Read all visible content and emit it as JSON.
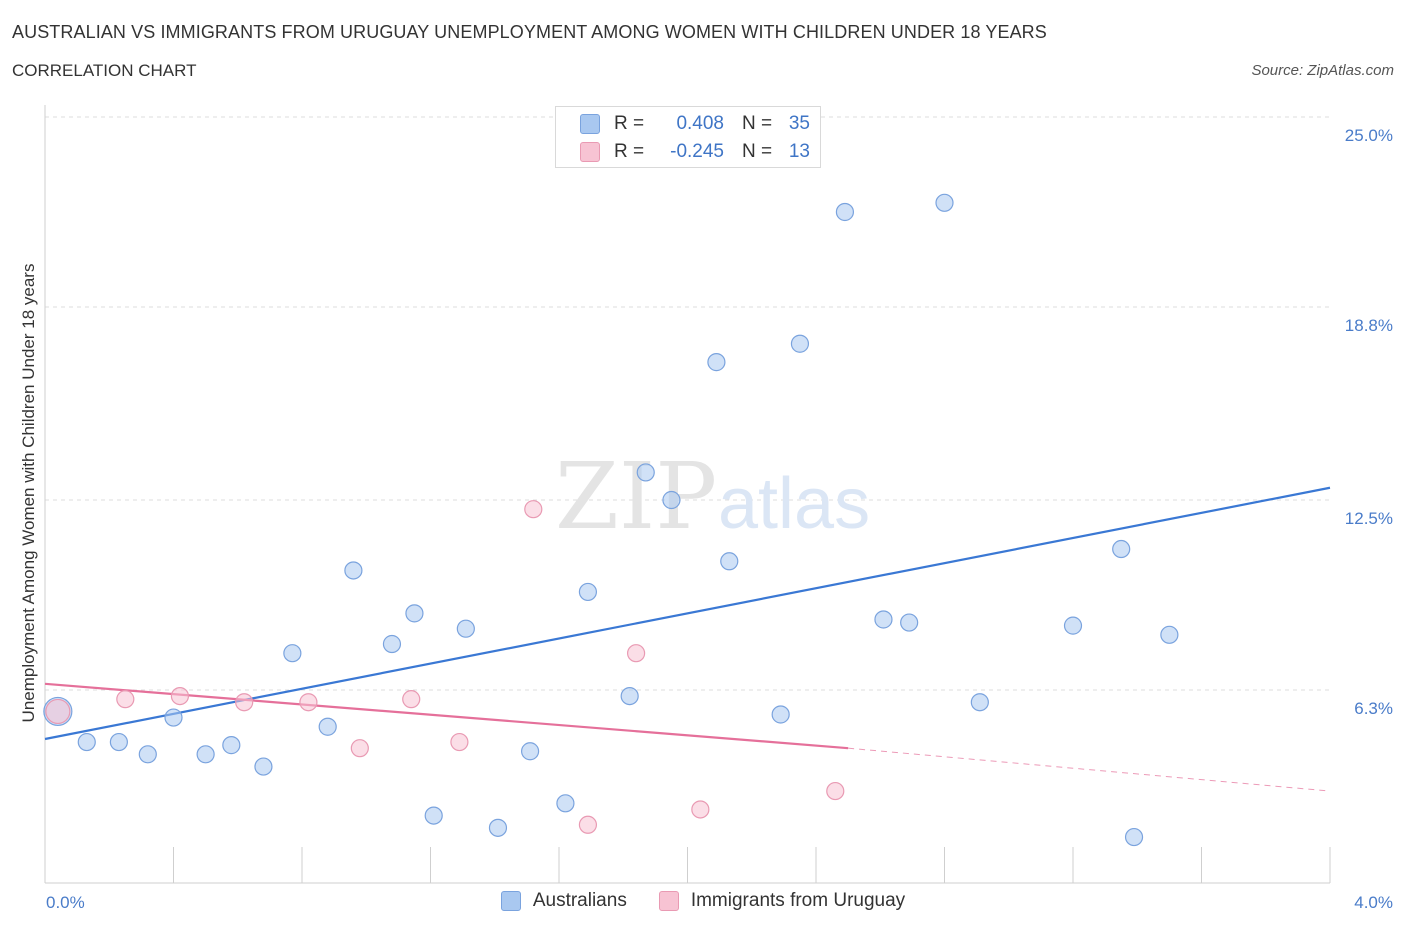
{
  "header": {
    "title": "AUSTRALIAN VS IMMIGRANTS FROM URUGUAY UNEMPLOYMENT AMONG WOMEN WITH CHILDREN UNDER 18 YEARS",
    "subtitle": "CORRELATION CHART",
    "source": "Source: ZipAtlas.com"
  },
  "watermark": {
    "zip": "ZIP",
    "atlas": "atlas"
  },
  "legend_top": {
    "rows": [
      {
        "r_label": "R =",
        "r_value": "0.408",
        "n_label": "N =",
        "n_value": "35",
        "color": "#a9c8f0",
        "border": "#7aa3de"
      },
      {
        "r_label": "R =",
        "r_value": "-0.245",
        "n_label": "N =",
        "n_value": "13",
        "color": "#f7c3d3",
        "border": "#e99ab3"
      }
    ]
  },
  "legend_bottom": {
    "items": [
      {
        "label": "Australians",
        "color": "#a9c8f0",
        "border": "#7aa3de"
      },
      {
        "label": "Immigrants from Uruguay",
        "color": "#f7c3d3",
        "border": "#e99ab3"
      }
    ]
  },
  "chart_data": {
    "type": "scatter",
    "xlabel": "",
    "ylabel": "Unemployment Among Women with Children Under 18 years",
    "xlim": [
      0,
      4.0
    ],
    "ylim": [
      0,
      25.0
    ],
    "x_tick_labels": [
      "0.0%",
      "4.0%"
    ],
    "y_ticks": [
      6.3,
      12.5,
      18.8,
      25.0
    ],
    "y_tick_labels": [
      "6.3%",
      "12.5%",
      "18.8%",
      "25.0%"
    ],
    "grid": true,
    "colors": {
      "australians": "#3a78d4",
      "uruguay": "#e5709a",
      "tick_text": "#4a7cc9"
    },
    "series": [
      {
        "name": "Australians",
        "r": 0.408,
        "n": 35,
        "points": [
          [
            0.04,
            5.6
          ],
          [
            0.13,
            4.6
          ],
          [
            0.23,
            4.6
          ],
          [
            0.32,
            4.2
          ],
          [
            0.4,
            5.4
          ],
          [
            0.5,
            4.2
          ],
          [
            0.58,
            4.5
          ],
          [
            0.68,
            3.8
          ],
          [
            0.77,
            7.5
          ],
          [
            0.88,
            5.1
          ],
          [
            0.96,
            10.2
          ],
          [
            1.08,
            7.8
          ],
          [
            1.15,
            8.8
          ],
          [
            1.21,
            2.2
          ],
          [
            1.31,
            8.3
          ],
          [
            1.41,
            1.8
          ],
          [
            1.51,
            4.3
          ],
          [
            1.62,
            2.6
          ],
          [
            1.69,
            9.5
          ],
          [
            1.82,
            6.1
          ],
          [
            1.87,
            13.4
          ],
          [
            1.95,
            12.5
          ],
          [
            2.09,
            17.0
          ],
          [
            2.13,
            10.5
          ],
          [
            2.29,
            5.5
          ],
          [
            2.35,
            17.6
          ],
          [
            2.49,
            21.9
          ],
          [
            2.61,
            8.6
          ],
          [
            2.69,
            8.5
          ],
          [
            2.8,
            22.2
          ],
          [
            2.91,
            5.9
          ],
          [
            3.2,
            8.4
          ],
          [
            3.35,
            10.9
          ],
          [
            3.39,
            1.5
          ],
          [
            3.5,
            8.1
          ]
        ],
        "trend": {
          "x": [
            0.0,
            4.0
          ],
          "y": [
            4.7,
            12.9
          ]
        }
      },
      {
        "name": "Immigrants from Uruguay",
        "r": -0.245,
        "n": 13,
        "points": [
          [
            0.04,
            5.6
          ],
          [
            0.25,
            6.0
          ],
          [
            0.42,
            6.1
          ],
          [
            0.62,
            5.9
          ],
          [
            0.82,
            5.9
          ],
          [
            0.98,
            4.4
          ],
          [
            1.14,
            6.0
          ],
          [
            1.29,
            4.6
          ],
          [
            1.52,
            12.2
          ],
          [
            1.69,
            1.9
          ],
          [
            1.84,
            7.5
          ],
          [
            2.04,
            2.4
          ],
          [
            2.46,
            3.0
          ]
        ],
        "trend": {
          "x": [
            0.0,
            2.5
          ],
          "y": [
            6.5,
            4.4
          ],
          "dashed_to": [
            4.0,
            3.0
          ]
        }
      }
    ]
  }
}
